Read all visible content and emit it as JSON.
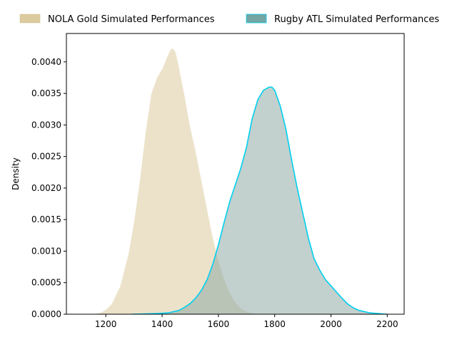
{
  "chart_data": {
    "type": "area",
    "xlabel": "",
    "ylabel": "Density",
    "xlim": [
      1060,
      2260
    ],
    "ylim": [
      0,
      0.00445
    ],
    "x_ticks": [
      1200,
      1400,
      1600,
      1800,
      2000,
      2200
    ],
    "x_tick_labels": [
      "1200",
      "1400",
      "1600",
      "1800",
      "2000",
      "2200"
    ],
    "y_ticks": [
      0,
      0.0005,
      0.001,
      0.0015,
      0.002,
      0.0025,
      0.003,
      0.0035,
      0.004
    ],
    "y_tick_labels": [
      "0.0000",
      "0.0005",
      "0.0010",
      "0.0015",
      "0.0020",
      "0.0025",
      "0.0030",
      "0.0035",
      "0.0040"
    ],
    "grid": false,
    "legend_position": "top",
    "series": [
      {
        "name": "NOLA Gold Simulated Performances",
        "fill_color": "#dccb9f",
        "fill_opacity": 0.55,
        "line_color": "#ffffff",
        "legend_color": "#dccb9f",
        "x": [
          1150,
          1180,
          1200,
          1220,
          1250,
          1280,
          1300,
          1320,
          1340,
          1360,
          1380,
          1400,
          1420,
          1430,
          1440,
          1450,
          1460,
          1480,
          1500,
          1520,
          1540,
          1560,
          1580,
          1600,
          1620,
          1640,
          1660,
          1680,
          1700,
          1720,
          1740,
          1760,
          1780,
          1800
        ],
        "y": [
          0,
          3e-05,
          8e-05,
          0.00017,
          0.00045,
          0.00098,
          0.0015,
          0.00215,
          0.0029,
          0.0035,
          0.00375,
          0.0039,
          0.00412,
          0.00421,
          0.00422,
          0.00415,
          0.00395,
          0.0035,
          0.003,
          0.0026,
          0.00215,
          0.0017,
          0.00125,
          0.00088,
          0.00058,
          0.00036,
          0.0002,
          0.0001,
          5e-05,
          2.5e-05,
          1e-05,
          5e-06,
          2e-06,
          0
        ]
      },
      {
        "name": "Rugby ATL Simulated Performances",
        "fill_color": "#8fa9a6",
        "fill_opacity": 0.55,
        "line_color": "#00d0f0",
        "legend_color": "#74a6a4",
        "x": [
          1290,
          1340,
          1380,
          1420,
          1460,
          1480,
          1500,
          1520,
          1540,
          1560,
          1580,
          1600,
          1620,
          1640,
          1660,
          1680,
          1700,
          1720,
          1740,
          1760,
          1780,
          1790,
          1800,
          1820,
          1840,
          1860,
          1880,
          1900,
          1920,
          1940,
          1960,
          1980,
          2000,
          2020,
          2040,
          2060,
          2080,
          2100,
          2140,
          2200
        ],
        "y": [
          0,
          5e-06,
          1e-05,
          2e-05,
          6e-05,
          0.00011,
          0.00017,
          0.00026,
          0.00038,
          0.00055,
          0.00079,
          0.0011,
          0.00145,
          0.00178,
          0.00205,
          0.00232,
          0.00265,
          0.0031,
          0.0034,
          0.00355,
          0.0036,
          0.0036,
          0.00355,
          0.0033,
          0.00293,
          0.00245,
          0.002,
          0.0016,
          0.0012,
          0.00088,
          0.0007,
          0.00055,
          0.00045,
          0.00035,
          0.00025,
          0.00016,
          0.0001,
          6e-05,
          2e-05,
          0
        ]
      }
    ]
  }
}
